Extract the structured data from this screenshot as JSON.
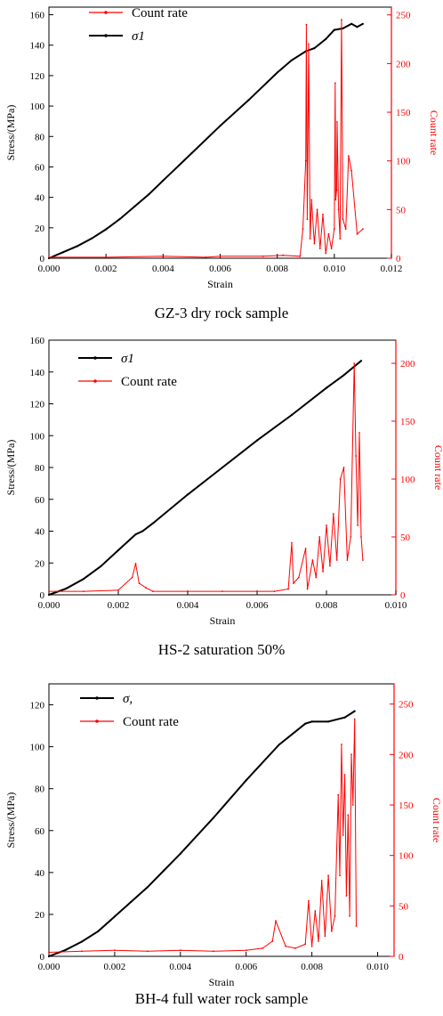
{
  "chart_data": [
    {
      "type": "line",
      "caption": "GZ-3 dry rock sample",
      "xlabel": "Strain",
      "ylabel": "Stress/(MPa)",
      "y2label": "Count rate",
      "xlim": [
        0,
        0.012
      ],
      "ylim": [
        0,
        165
      ],
      "y2lim": [
        0,
        258
      ],
      "xticks": [
        "0.000",
        "0.002",
        "0.004",
        "0.006",
        "0.008",
        "0.010",
        "0.012"
      ],
      "yticks": [
        "0",
        "20",
        "40",
        "60",
        "80",
        "100",
        "120",
        "140",
        "160"
      ],
      "y2ticks": [
        "0",
        "50",
        "100",
        "150",
        "200",
        "250"
      ],
      "legend": [
        "Count rate",
        "σ1"
      ],
      "legend_order": [
        "count",
        "stress"
      ],
      "colors": {
        "stress": "#000000",
        "count": "#ff0000"
      },
      "series": [
        {
          "name": "σ1",
          "axis": "left",
          "x": [
            0,
            0.0005,
            0.001,
            0.0015,
            0.002,
            0.0025,
            0.003,
            0.0035,
            0.004,
            0.005,
            0.006,
            0.007,
            0.008,
            0.0085,
            0.009,
            0.0093,
            0.0097,
            0.01,
            0.0103,
            0.0106,
            0.0108,
            0.011
          ],
          "y": [
            0,
            4,
            8,
            13,
            19,
            26,
            34,
            42,
            51,
            69,
            87,
            104,
            122,
            130,
            136,
            138,
            144,
            150,
            151,
            154,
            152,
            154
          ]
        },
        {
          "name": "Count rate",
          "axis": "right",
          "x": [
            0,
            0.002,
            0.004,
            0.0055,
            0.006,
            0.0075,
            0.0082,
            0.0088,
            0.0089,
            0.009,
            0.00902,
            0.00905,
            0.0091,
            0.00915,
            0.0092,
            0.0093,
            0.0094,
            0.0095,
            0.0096,
            0.0097,
            0.0098,
            0.0099,
            0.01,
            0.01003,
            0.01005,
            0.01008,
            0.0101,
            0.01015,
            0.0102,
            0.01025,
            0.0103,
            0.0104,
            0.0105,
            0.0106,
            0.0108,
            0.011
          ],
          "y": [
            1,
            1,
            2,
            1,
            2,
            2,
            3,
            2,
            30,
            100,
            240,
            40,
            220,
            20,
            60,
            15,
            50,
            10,
            45,
            5,
            25,
            10,
            30,
            180,
            60,
            70,
            140,
            50,
            20,
            245,
            40,
            30,
            105,
            90,
            25,
            30
          ]
        }
      ]
    },
    {
      "type": "line",
      "caption": "HS-2 saturation 50%",
      "xlabel": "Strain",
      "ylabel": "Stress/(MPa)",
      "y2label": "Count rate",
      "xlim": [
        0,
        0.01
      ],
      "ylim": [
        0,
        160
      ],
      "y2lim": [
        0,
        220
      ],
      "xticks": [
        "0.000",
        "0.002",
        "0.004",
        "0.006",
        "0.008",
        "0.010"
      ],
      "yticks": [
        "0",
        "20",
        "40",
        "60",
        "80",
        "100",
        "120",
        "140",
        "160"
      ],
      "y2ticks": [
        "0",
        "50",
        "100",
        "150",
        "200"
      ],
      "legend": [
        "σ1",
        "Count rate"
      ],
      "legend_order": [
        "stress",
        "count"
      ],
      "colors": {
        "stress": "#000000",
        "count": "#ff0000"
      },
      "series": [
        {
          "name": "σ1",
          "axis": "left",
          "x": [
            0,
            0.0005,
            0.001,
            0.0015,
            0.002,
            0.0025,
            0.0027,
            0.003,
            0.004,
            0.005,
            0.006,
            0.007,
            0.008,
            0.0085,
            0.009
          ],
          "y": [
            0,
            4,
            10,
            18,
            28,
            38,
            40,
            45,
            63,
            80,
            97,
            113,
            130,
            138,
            147
          ]
        },
        {
          "name": "Count rate",
          "axis": "right",
          "x": [
            0,
            0.001,
            0.002,
            0.0024,
            0.0025,
            0.0026,
            0.0028,
            0.003,
            0.004,
            0.005,
            0.0065,
            0.0069,
            0.007,
            0.00705,
            0.0072,
            0.0074,
            0.00745,
            0.0076,
            0.0077,
            0.0078,
            0.0079,
            0.008,
            0.0081,
            0.0082,
            0.0083,
            0.0084,
            0.0085,
            0.0086,
            0.0087,
            0.0088,
            0.00885,
            0.0089,
            0.00895,
            0.009,
            0.00905
          ],
          "y": [
            3,
            3,
            4,
            15,
            27,
            10,
            6,
            3,
            3,
            3,
            3,
            5,
            45,
            10,
            15,
            40,
            5,
            30,
            15,
            50,
            20,
            60,
            25,
            70,
            30,
            100,
            110,
            30,
            50,
            200,
            120,
            60,
            140,
            50,
            30
          ]
        }
      ]
    },
    {
      "type": "line",
      "caption": "BH-4 full water rock sample",
      "xlabel": "Strain",
      "ylabel": "Stress/(MPa)",
      "y2label": "Count rate",
      "xlim": [
        0,
        0.0105
      ],
      "ylim": [
        0,
        130
      ],
      "y2lim": [
        0,
        270
      ],
      "xticks": [
        "0.000",
        "0.002",
        "0.004",
        "0.006",
        "0.008",
        "0.010"
      ],
      "yticks": [
        "0",
        "20",
        "40",
        "60",
        "80",
        "100",
        "120"
      ],
      "y2ticks": [
        "0",
        "50",
        "100",
        "150",
        "200",
        "250"
      ],
      "legend": [
        "σ,",
        "Count rate"
      ],
      "legend_order": [
        "stress",
        "count"
      ],
      "colors": {
        "stress": "#000000",
        "count": "#ff0000"
      },
      "series": [
        {
          "name": "σ,",
          "axis": "left",
          "x": [
            0,
            0.0005,
            0.001,
            0.0015,
            0.002,
            0.0025,
            0.003,
            0.0035,
            0.004,
            0.005,
            0.006,
            0.007,
            0.0078,
            0.008,
            0.0085,
            0.009,
            0.0093
          ],
          "y": [
            0,
            3,
            7,
            12,
            19,
            26,
            33,
            41,
            49,
            66,
            84,
            101,
            111,
            112,
            112,
            114,
            117
          ]
        },
        {
          "name": "Count rate",
          "axis": "right",
          "x": [
            0,
            0.001,
            0.002,
            0.003,
            0.004,
            0.005,
            0.006,
            0.0065,
            0.0068,
            0.0069,
            0.0072,
            0.0075,
            0.0078,
            0.0079,
            0.008,
            0.0081,
            0.0082,
            0.0083,
            0.0084,
            0.0085,
            0.0086,
            0.0087,
            0.0088,
            0.00885,
            0.0089,
            0.00895,
            0.009,
            0.00905,
            0.0091,
            0.00915,
            0.0092,
            0.00925,
            0.0093,
            0.00935
          ],
          "y": [
            4,
            5,
            6,
            5,
            6,
            5,
            6,
            8,
            15,
            35,
            10,
            8,
            12,
            55,
            10,
            45,
            15,
            75,
            20,
            80,
            25,
            40,
            160,
            80,
            210,
            120,
            180,
            60,
            140,
            40,
            200,
            150,
            235,
            30
          ]
        }
      ]
    }
  ]
}
